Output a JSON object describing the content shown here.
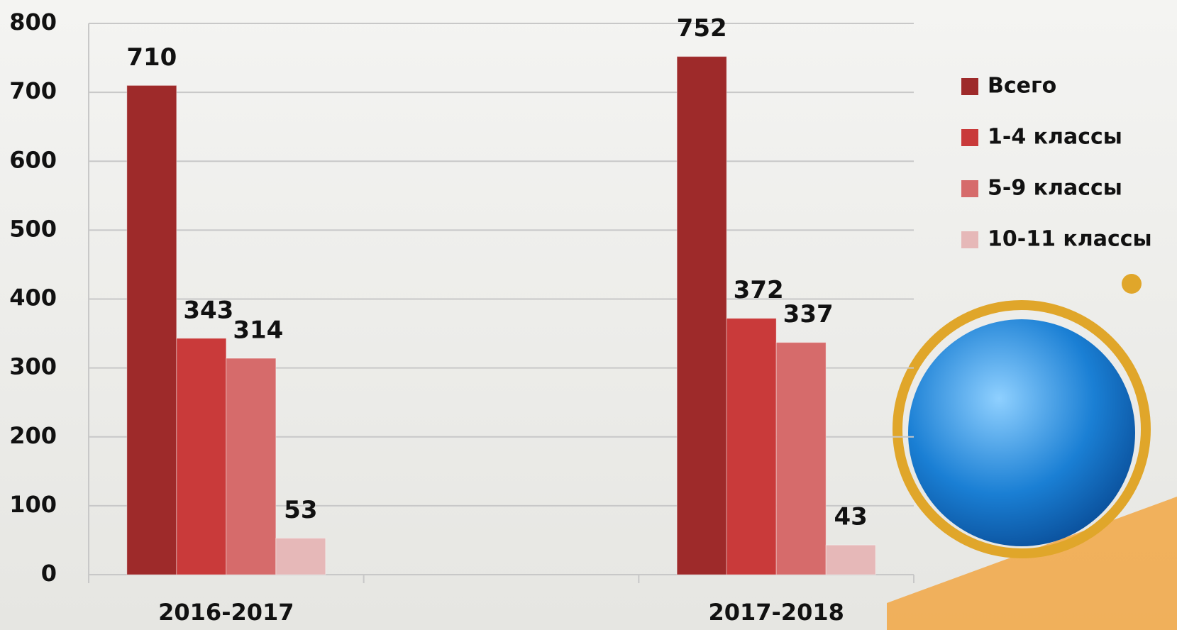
{
  "chart_data": {
    "type": "bar",
    "categories": [
      "2016-2017",
      null,
      "2017-2018"
    ],
    "series": [
      {
        "name": "Всего",
        "color": "#9e2a2a",
        "values": [
          710,
          null,
          752
        ]
      },
      {
        "name": "1-4 классы",
        "color": "#c93a3a",
        "values": [
          343,
          null,
          372
        ]
      },
      {
        "name": "5-9 классы",
        "color": "#d66b6b",
        "values": [
          314,
          null,
          337
        ]
      },
      {
        "name": "10-11 классы",
        "color": "#e6b8b8",
        "values": [
          53,
          null,
          43
        ]
      }
    ],
    "ylim": [
      0,
      800
    ],
    "yticks": [
      0,
      100,
      200,
      300,
      400,
      500,
      600,
      700,
      800
    ],
    "grid": true,
    "legend": "right"
  }
}
